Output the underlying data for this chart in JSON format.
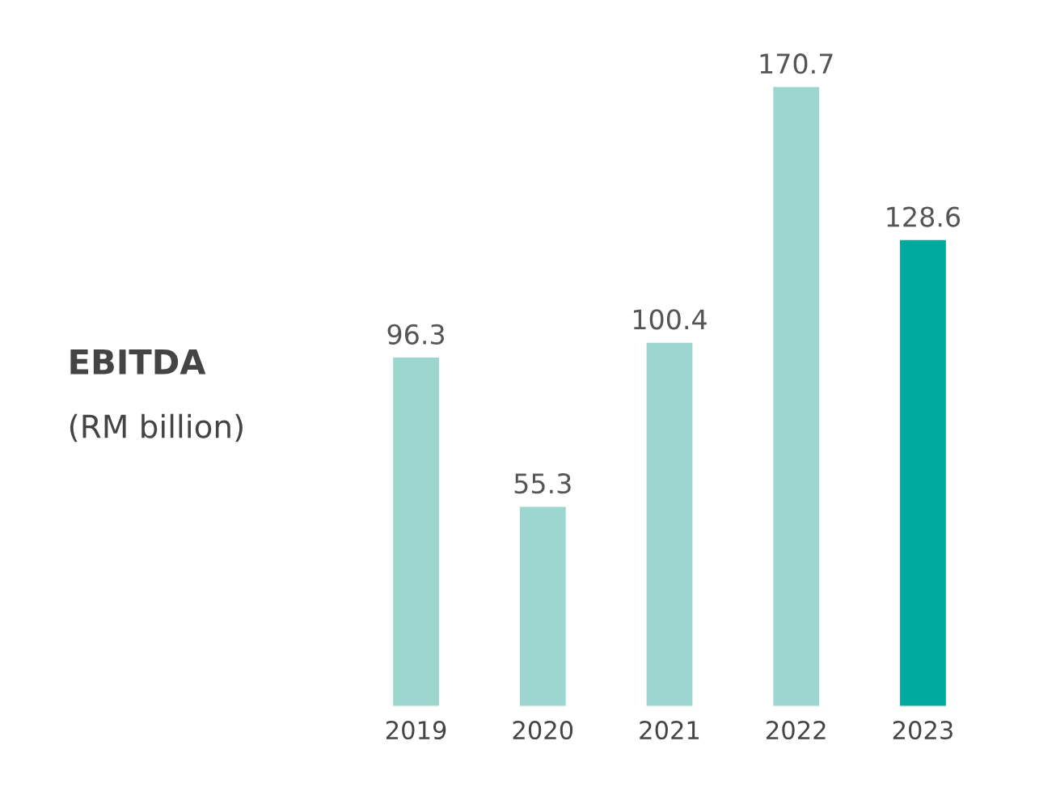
{
  "chart_data": {
    "type": "bar",
    "title": "EBITDA",
    "subtitle": "(RM billion)",
    "categories": [
      "2019",
      "2020",
      "2021",
      "2022",
      "2023"
    ],
    "values": [
      96.3,
      55.3,
      100.4,
      170.7,
      128.6
    ],
    "colors": [
      "#9dd6cf",
      "#9dd6cf",
      "#9dd6cf",
      "#9dd6cf",
      "#00a99d"
    ],
    "data_labels": true
  }
}
